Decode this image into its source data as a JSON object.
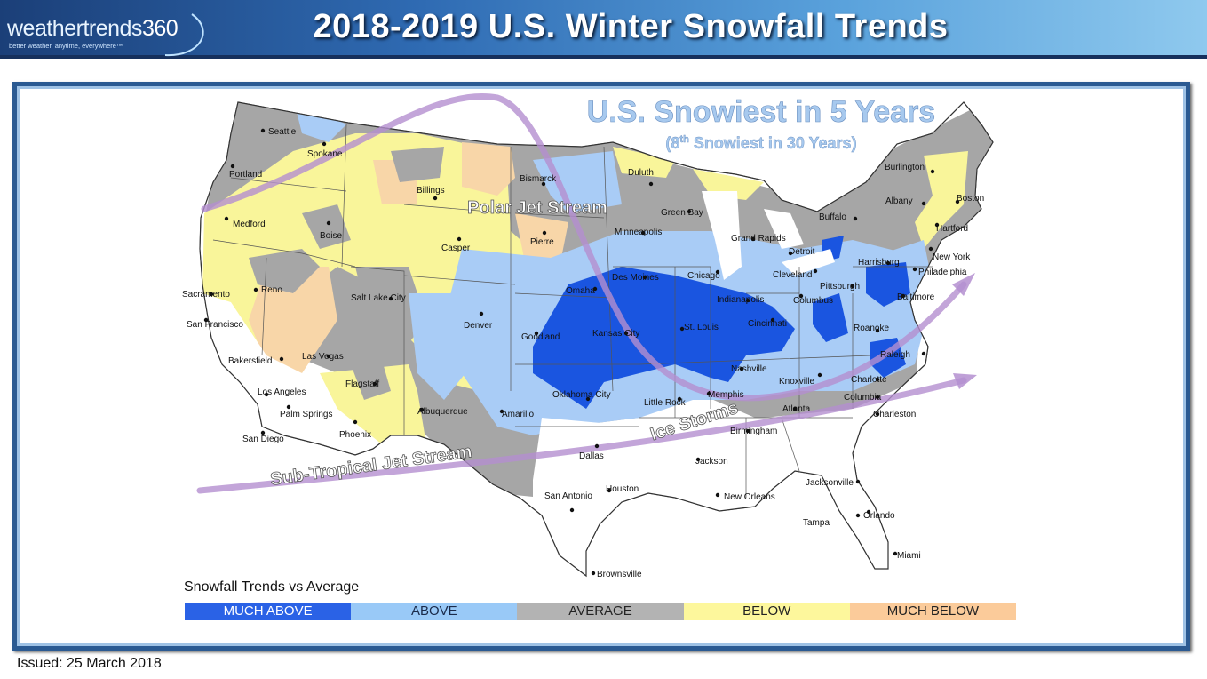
{
  "header": {
    "logo_text": "weathertrends",
    "logo_number": "360",
    "logo_tagline": "better weather, anytime, everywhere™",
    "title": "2018-2019 U.S. Winter Snowfall Trends"
  },
  "map": {
    "headline": "U.S. Snowiest in 5 Years",
    "subheadline_prefix": "(8",
    "subheadline_sup": "th",
    "subheadline_suffix": " Snowiest in 30 Years)",
    "polar_jet_label": "Polar Jet Stream",
    "subtropical_jet_label": "Sub-Tropical Jet Stream",
    "ice_storms_label": "Ice Storms",
    "colors": {
      "much_above": "#1a55e0",
      "above": "#a9ccf6",
      "average": "#a6a6a6",
      "below": "#f9f59a",
      "much_below": "#f8d6a8",
      "jet_arrow": "#b48fd0"
    },
    "cities": [
      {
        "name": "Seattle"
      },
      {
        "name": "Spokane"
      },
      {
        "name": "Portland"
      },
      {
        "name": "Medford"
      },
      {
        "name": "Boise"
      },
      {
        "name": "Billings"
      },
      {
        "name": "Bismarck"
      },
      {
        "name": "Duluth"
      },
      {
        "name": "Burlington"
      },
      {
        "name": "Boston"
      },
      {
        "name": "Albany"
      },
      {
        "name": "Buffalo"
      },
      {
        "name": "Hartford"
      },
      {
        "name": "New York"
      },
      {
        "name": "Philadelphia"
      },
      {
        "name": "Baltimore"
      },
      {
        "name": "Harrisburg"
      },
      {
        "name": "Pittsburgh"
      },
      {
        "name": "Cleveland"
      },
      {
        "name": "Detroit"
      },
      {
        "name": "Grand Rapids"
      },
      {
        "name": "Green Bay"
      },
      {
        "name": "Minneapolis"
      },
      {
        "name": "Pierre"
      },
      {
        "name": "Casper"
      },
      {
        "name": "Reno"
      },
      {
        "name": "Sacramento"
      },
      {
        "name": "San Francisco"
      },
      {
        "name": "Salt Lake City"
      },
      {
        "name": "Denver"
      },
      {
        "name": "Omaha"
      },
      {
        "name": "Des Moines"
      },
      {
        "name": "Chicago"
      },
      {
        "name": "Indianapolis"
      },
      {
        "name": "Columbus"
      },
      {
        "name": "Cincinnati"
      },
      {
        "name": "Goodland"
      },
      {
        "name": "Kansas City"
      },
      {
        "name": "St. Louis"
      },
      {
        "name": "Roanoke"
      },
      {
        "name": "Raleigh"
      },
      {
        "name": "Bakersfield"
      },
      {
        "name": "Las Vegas"
      },
      {
        "name": "Los Angeles"
      },
      {
        "name": "Flagstaff"
      },
      {
        "name": "Palm Springs"
      },
      {
        "name": "Nashville"
      },
      {
        "name": "Knoxville"
      },
      {
        "name": "Charlotte"
      },
      {
        "name": "Oklahoma City"
      },
      {
        "name": "Little Rock"
      },
      {
        "name": "Memphis"
      },
      {
        "name": "Albuquerque"
      },
      {
        "name": "Amarillo"
      },
      {
        "name": "Atlanta"
      },
      {
        "name": "Columbia"
      },
      {
        "name": "Charleston"
      },
      {
        "name": "San Diego"
      },
      {
        "name": "Phoenix"
      },
      {
        "name": "Birmingham"
      },
      {
        "name": "Dallas"
      },
      {
        "name": "Jackson"
      },
      {
        "name": "Jacksonville"
      },
      {
        "name": "Houston"
      },
      {
        "name": "San Antonio"
      },
      {
        "name": "New Orleans"
      },
      {
        "name": "Orlando"
      },
      {
        "name": "Tampa"
      },
      {
        "name": "Miami"
      },
      {
        "name": "Brownsville"
      }
    ]
  },
  "legend": {
    "title": "Snowfall Trends vs Average",
    "items": [
      {
        "label": "MUCH ABOVE",
        "color": "#2a62e6",
        "text_color": "#ffffff"
      },
      {
        "label": "ABOVE",
        "color": "#99c9f7",
        "text_color": "#1a2a4a"
      },
      {
        "label": "AVERAGE",
        "color": "#b3b3b3",
        "text_color": "#222222"
      },
      {
        "label": "BELOW",
        "color": "#fdf79c",
        "text_color": "#222222"
      },
      {
        "label": "MUCH BELOW",
        "color": "#fbcb9a",
        "text_color": "#222222"
      }
    ]
  },
  "footer": {
    "issued": "Issued: 25 March 2018"
  }
}
